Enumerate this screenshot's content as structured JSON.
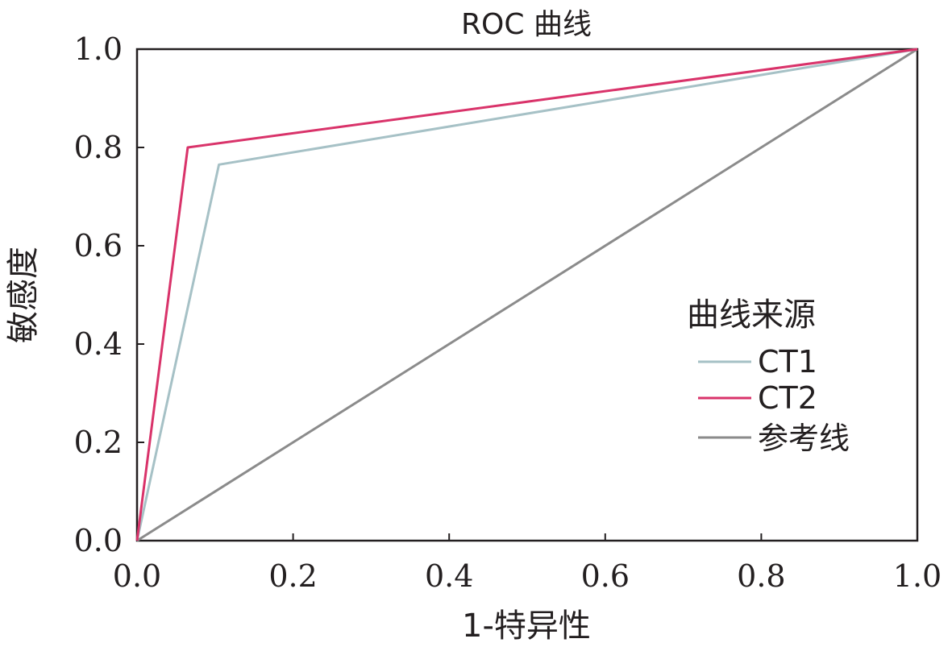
{
  "chart_data": {
    "type": "line",
    "title": "ROC 曲线",
    "xlabel": "1-特异性",
    "ylabel": "敏感度",
    "xlim": [
      0,
      1
    ],
    "ylim": [
      0,
      1
    ],
    "xticks": [
      "0.0",
      "0.2",
      "0.4",
      "0.6",
      "0.8",
      "1.0"
    ],
    "yticks": [
      "0.0",
      "0.2",
      "0.4",
      "0.6",
      "0.8",
      "1.0"
    ],
    "grid": false,
    "legend": {
      "title": "曲线来源",
      "placement": "right"
    },
    "series": [
      {
        "name": "CT1",
        "color": "#a6c1c6",
        "x": [
          0,
          0.105,
          1
        ],
        "y": [
          0,
          0.765,
          1
        ]
      },
      {
        "name": "CT2",
        "color": "#d9336a",
        "x": [
          0,
          0.065,
          1
        ],
        "y": [
          0,
          0.8,
          1
        ]
      },
      {
        "name": "参考线",
        "color": "#8b8b8b",
        "x": [
          0,
          1
        ],
        "y": [
          0,
          1
        ]
      }
    ]
  }
}
